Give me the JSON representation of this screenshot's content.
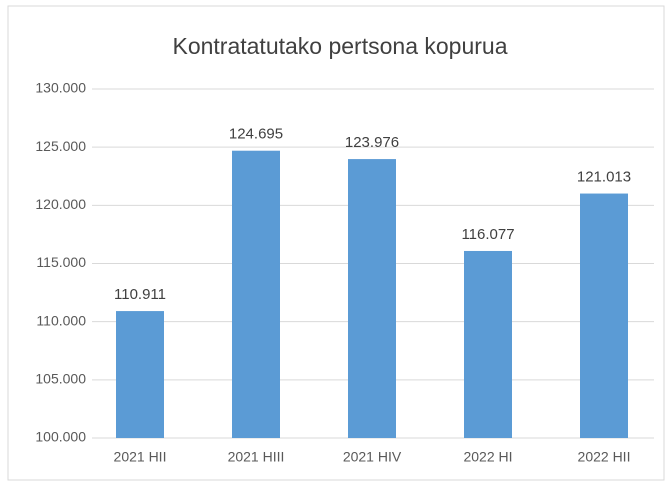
{
  "chart_data": {
    "type": "bar",
    "title": "Kontratatutako pertsona kopurua",
    "categories": [
      "2021 HII",
      "2021 HIII",
      "2021 HIV",
      "2022 HI",
      "2022 HII"
    ],
    "values": [
      110911,
      124695,
      123976,
      116077,
      121013
    ],
    "value_labels": [
      "110.911",
      "124.695",
      "123.976",
      "116.077",
      "121.013"
    ],
    "color": "#5b9bd5",
    "ylim": [
      100000,
      130000
    ],
    "yticks": [
      {
        "value": 100000,
        "label": "100.000"
      },
      {
        "value": 105000,
        "label": "105.000"
      },
      {
        "value": 110000,
        "label": "110.000"
      },
      {
        "value": 115000,
        "label": "115.000"
      },
      {
        "value": 120000,
        "label": "120.000"
      },
      {
        "value": 125000,
        "label": "125.000"
      },
      {
        "value": 130000,
        "label": "130.000"
      }
    ],
    "grid": true
  }
}
